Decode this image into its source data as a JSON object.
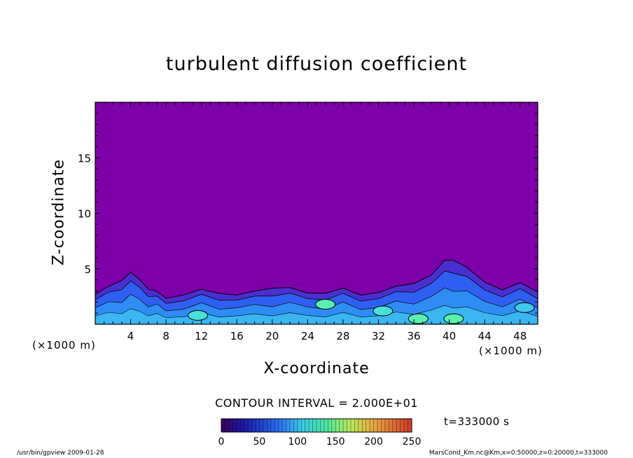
{
  "chart_data": {
    "type": "heatmap",
    "title": "turbulent diffusion coefficient",
    "xlabel": "X-coordinate",
    "ylabel": "Z-coordinate",
    "x_unit": "(×1000 m)",
    "xlim": [
      0,
      50
    ],
    "ylim": [
      0,
      20
    ],
    "x_ticks": [
      4,
      8,
      12,
      16,
      20,
      24,
      28,
      32,
      36,
      40,
      44,
      48
    ],
    "y_ticks": [
      5,
      10,
      15
    ],
    "contour_interval_label": "CONTOUR INTERVAL = 2.000E+01",
    "time_label": "t=333000 s",
    "colorbar": {
      "min": 0,
      "max": 250,
      "ticks": [
        0,
        50,
        100,
        150,
        200,
        250
      ]
    },
    "background_value": 0,
    "background_color": "#7d00a8",
    "turbulent_layer_top": [
      [
        0,
        2.7
      ],
      [
        1.5,
        3.3
      ],
      [
        3,
        4.1
      ],
      [
        4,
        4.6
      ],
      [
        5,
        4.0
      ],
      [
        6,
        3.3
      ],
      [
        7,
        2.8
      ],
      [
        8,
        2.4
      ],
      [
        10,
        2.7
      ],
      [
        12,
        3.0
      ],
      [
        14,
        2.9
      ],
      [
        16,
        2.6
      ],
      [
        18,
        2.9
      ],
      [
        20,
        3.4
      ],
      [
        22,
        3.2
      ],
      [
        24,
        2.8
      ],
      [
        26,
        2.9
      ],
      [
        28,
        3.1
      ],
      [
        30,
        2.7
      ],
      [
        32,
        2.9
      ],
      [
        34,
        3.3
      ],
      [
        36,
        3.8
      ],
      [
        38,
        4.4
      ],
      [
        39.5,
        5.7
      ],
      [
        40.5,
        5.9
      ],
      [
        42,
        5.0
      ],
      [
        44,
        3.8
      ],
      [
        46,
        3.2
      ],
      [
        48,
        3.6
      ],
      [
        50,
        3.0
      ]
    ],
    "high_value_regions": [
      {
        "x": 11.6,
        "z": 0.8,
        "value": 140
      },
      {
        "x": 26.0,
        "z": 1.8,
        "value": 150
      },
      {
        "x": 32.5,
        "z": 1.2,
        "value": 140
      },
      {
        "x": 36.5,
        "z": 0.5,
        "value": 160
      },
      {
        "x": 40.5,
        "z": 0.5,
        "value": 150
      },
      {
        "x": 48.5,
        "z": 1.5,
        "value": 120
      }
    ]
  },
  "footer": {
    "left": "/usr/bin/gpview  2009-01-28",
    "right": "MarsCond_Km.nc@Km,x=0:50000,z=0:20000,t=333000"
  }
}
